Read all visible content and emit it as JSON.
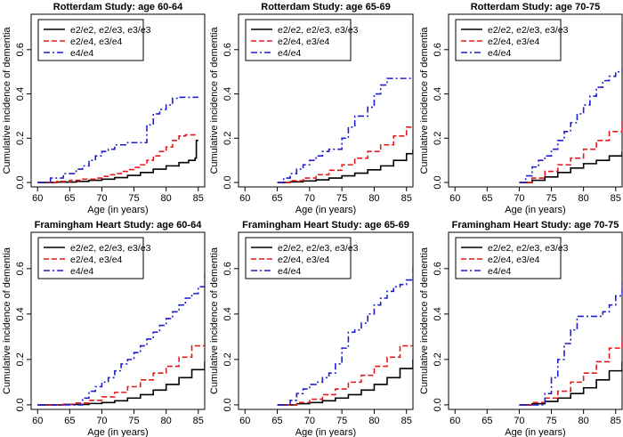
{
  "figure": {
    "xlabel": "Age (in years)",
    "ylabel": "Cumulative incidence of dementia",
    "xticks": [
      60,
      65,
      70,
      75,
      80,
      85
    ],
    "yticks": [
      0.0,
      0.2,
      0.4,
      0.6
    ],
    "ytick_labels": [
      "0.0",
      "0.2",
      "0.4",
      "0.6"
    ],
    "xlim": [
      59,
      86
    ],
    "ylim": [
      -0.02,
      0.76
    ],
    "legend": [
      "e2/e2, e2/e3, e3/e3",
      "e2/e4, e3/e4",
      "e4/e4"
    ],
    "colors": {
      "e3e3": "#000000",
      "e34": "#e31a1c",
      "e44": "#1f1fcf"
    }
  },
  "chart_data": [
    {
      "type": "line",
      "title": "Rotterdam Study: age 60-64",
      "xlabel": "Age (in years)",
      "ylabel": "Cumulative incidence of dementia",
      "xlim": [
        59,
        86
      ],
      "ylim": [
        -0.02,
        0.76
      ],
      "series": [
        {
          "name": "e2/e2, e2/e3, e3/e3",
          "x": [
            60,
            63,
            66,
            68,
            70,
            72,
            74,
            76,
            78,
            80,
            82,
            83.5,
            84.5,
            84.7,
            85
          ],
          "y": [
            0.0,
            0.002,
            0.005,
            0.01,
            0.015,
            0.022,
            0.032,
            0.045,
            0.06,
            0.075,
            0.09,
            0.1,
            0.11,
            0.19,
            0.19
          ]
        },
        {
          "name": "e2/e4, e3/e4",
          "x": [
            60,
            63,
            65,
            67,
            69,
            70,
            71,
            72,
            73,
            74,
            75,
            76,
            77,
            78,
            79,
            80,
            81,
            82,
            83,
            84,
            85
          ],
          "y": [
            0.0,
            0.005,
            0.01,
            0.015,
            0.02,
            0.028,
            0.035,
            0.04,
            0.05,
            0.058,
            0.068,
            0.08,
            0.1,
            0.12,
            0.14,
            0.16,
            0.19,
            0.21,
            0.215,
            0.215,
            0.215
          ]
        },
        {
          "name": "e4/e4",
          "x": [
            60,
            62,
            64,
            66,
            67,
            68,
            69,
            70,
            71,
            72,
            74,
            76,
            77,
            78,
            79,
            80,
            81,
            82,
            83,
            84,
            85
          ],
          "y": [
            0.0,
            0.02,
            0.04,
            0.06,
            0.075,
            0.1,
            0.12,
            0.14,
            0.15,
            0.17,
            0.18,
            0.18,
            0.26,
            0.31,
            0.33,
            0.35,
            0.38,
            0.385,
            0.385,
            0.385,
            0.385
          ]
        }
      ]
    },
    {
      "type": "line",
      "title": "Rotterdam Study: age 65-69",
      "xlabel": "Age (in years)",
      "ylabel": "Cumulative incidence of dementia",
      "xlim": [
        59,
        86
      ],
      "ylim": [
        -0.02,
        0.76
      ],
      "series": [
        {
          "name": "e2/e2, e2/e3, e3/e3",
          "x": [
            65,
            67,
            69,
            71,
            73,
            75,
            77,
            79,
            81,
            83,
            85,
            86
          ],
          "y": [
            0.0,
            0.003,
            0.007,
            0.012,
            0.02,
            0.03,
            0.042,
            0.057,
            0.075,
            0.1,
            0.13,
            0.15
          ]
        },
        {
          "name": "e2/e4, e3/e4",
          "x": [
            65,
            67,
            69,
            71,
            73,
            75,
            77,
            79,
            81,
            83,
            85,
            86
          ],
          "y": [
            0.0,
            0.008,
            0.02,
            0.035,
            0.055,
            0.08,
            0.11,
            0.14,
            0.17,
            0.21,
            0.25,
            0.27
          ]
        },
        {
          "name": "e4/e4",
          "x": [
            65,
            66,
            67,
            68,
            69,
            70,
            71,
            72,
            73,
            74,
            75,
            76,
            77,
            78,
            79,
            80,
            81,
            82,
            83,
            84,
            85,
            86
          ],
          "y": [
            0.0,
            0.02,
            0.04,
            0.06,
            0.08,
            0.1,
            0.12,
            0.14,
            0.15,
            0.15,
            0.2,
            0.25,
            0.3,
            0.3,
            0.34,
            0.4,
            0.44,
            0.47,
            0.47,
            0.47,
            0.47,
            0.47
          ]
        }
      ]
    },
    {
      "type": "line",
      "title": "Rotterdam Study: age 70-75",
      "xlabel": "Age (in years)",
      "ylabel": "Cumulative incidence of dementia",
      "xlim": [
        59,
        86
      ],
      "ylim": [
        -0.02,
        0.76
      ],
      "series": [
        {
          "name": "e2/e2, e2/e3, e3/e3",
          "x": [
            70,
            72,
            74,
            76,
            78,
            80,
            82,
            84,
            86
          ],
          "y": [
            0.0,
            0.01,
            0.025,
            0.045,
            0.065,
            0.085,
            0.1,
            0.12,
            0.14
          ]
        },
        {
          "name": "e2/e4, e3/e4",
          "x": [
            70,
            72,
            74,
            76,
            78,
            80,
            82,
            84,
            86
          ],
          "y": [
            0.0,
            0.02,
            0.05,
            0.08,
            0.11,
            0.15,
            0.19,
            0.23,
            0.28
          ]
        },
        {
          "name": "e4/e4",
          "x": [
            70,
            71,
            72,
            73,
            74,
            75,
            76,
            77,
            78,
            79,
            80,
            81,
            82,
            83,
            84,
            85,
            86
          ],
          "y": [
            0.0,
            0.03,
            0.07,
            0.1,
            0.12,
            0.15,
            0.19,
            0.23,
            0.27,
            0.31,
            0.35,
            0.39,
            0.43,
            0.46,
            0.48,
            0.5,
            0.51
          ]
        }
      ]
    },
    {
      "type": "line",
      "title": "Framingham Heart Study: age 60-64",
      "xlabel": "Age (in years)",
      "ylabel": "Cumulative incidence of dementia",
      "xlim": [
        59,
        86
      ],
      "ylim": [
        -0.02,
        0.76
      ],
      "series": [
        {
          "name": "e2/e2, e2/e3, e3/e3",
          "x": [
            60,
            64,
            68,
            70,
            72,
            74,
            76,
            78,
            80,
            82,
            84,
            86
          ],
          "y": [
            0.0,
            0.002,
            0.006,
            0.01,
            0.018,
            0.03,
            0.045,
            0.065,
            0.09,
            0.12,
            0.155,
            0.19
          ]
        },
        {
          "name": "e2/e4, e3/e4",
          "x": [
            60,
            64,
            66,
            68,
            70,
            72,
            74,
            76,
            78,
            80,
            82,
            84,
            86
          ],
          "y": [
            0.0,
            0.003,
            0.008,
            0.02,
            0.035,
            0.055,
            0.08,
            0.11,
            0.14,
            0.17,
            0.21,
            0.26,
            0.3
          ]
        },
        {
          "name": "e4/e4",
          "x": [
            60,
            66,
            67,
            68,
            69,
            70,
            71,
            72,
            73,
            74,
            75,
            76,
            77,
            78,
            79,
            80,
            81,
            82,
            83,
            84,
            85,
            86
          ],
          "y": [
            0.0,
            0.0,
            0.03,
            0.06,
            0.08,
            0.1,
            0.12,
            0.15,
            0.18,
            0.2,
            0.23,
            0.26,
            0.29,
            0.32,
            0.35,
            0.38,
            0.41,
            0.44,
            0.47,
            0.49,
            0.52,
            0.58
          ]
        }
      ]
    },
    {
      "type": "line",
      "title": "Framingham Heart Study: age 65-69",
      "xlabel": "Age (in years)",
      "ylabel": "Cumulative incidence of dementia",
      "xlim": [
        59,
        86
      ],
      "ylim": [
        -0.02,
        0.76
      ],
      "series": [
        {
          "name": "e2/e2, e2/e3, e3/e3",
          "x": [
            65,
            68,
            70,
            72,
            74,
            76,
            78,
            80,
            82,
            84,
            86
          ],
          "y": [
            0.0,
            0.005,
            0.01,
            0.018,
            0.03,
            0.045,
            0.065,
            0.09,
            0.12,
            0.16,
            0.2
          ]
        },
        {
          "name": "e2/e4, e3/e4",
          "x": [
            65,
            68,
            70,
            72,
            74,
            76,
            78,
            80,
            82,
            84,
            86
          ],
          "y": [
            0.0,
            0.01,
            0.025,
            0.045,
            0.07,
            0.1,
            0.13,
            0.17,
            0.21,
            0.26,
            0.31
          ]
        },
        {
          "name": "e4/e4",
          "x": [
            65,
            67,
            68,
            69,
            70,
            71,
            72,
            73,
            74,
            75,
            76,
            77,
            78,
            79,
            80,
            81,
            82,
            83,
            84,
            85,
            86
          ],
          "y": [
            0.0,
            0.02,
            0.05,
            0.07,
            0.09,
            0.1,
            0.12,
            0.14,
            0.18,
            0.25,
            0.32,
            0.33,
            0.36,
            0.4,
            0.44,
            0.47,
            0.5,
            0.52,
            0.53,
            0.55,
            0.62
          ]
        }
      ]
    },
    {
      "type": "line",
      "title": "Framingham Heart Study: age 70-75",
      "xlabel": "Age (in years)",
      "ylabel": "Cumulative incidence of dementia",
      "xlim": [
        59,
        86
      ],
      "ylim": [
        -0.02,
        0.76
      ],
      "series": [
        {
          "name": "e2/e2, e2/e3, e3/e3",
          "x": [
            70,
            72,
            74,
            76,
            78,
            80,
            82,
            84,
            86
          ],
          "y": [
            0.0,
            0.005,
            0.015,
            0.03,
            0.05,
            0.075,
            0.11,
            0.15,
            0.19
          ]
        },
        {
          "name": "e2/e4, e3/e4",
          "x": [
            70,
            72,
            74,
            76,
            78,
            80,
            82,
            84,
            86
          ],
          "y": [
            0.0,
            0.01,
            0.03,
            0.06,
            0.1,
            0.14,
            0.19,
            0.25,
            0.3
          ]
        },
        {
          "name": "e4/e4",
          "x": [
            70,
            73,
            74,
            75,
            76,
            77,
            78,
            79,
            80,
            81,
            82,
            83,
            84,
            85,
            86
          ],
          "y": [
            0.0,
            0.0,
            0.05,
            0.12,
            0.2,
            0.27,
            0.33,
            0.39,
            0.39,
            0.39,
            0.39,
            0.41,
            0.44,
            0.48,
            0.54
          ]
        }
      ]
    }
  ]
}
